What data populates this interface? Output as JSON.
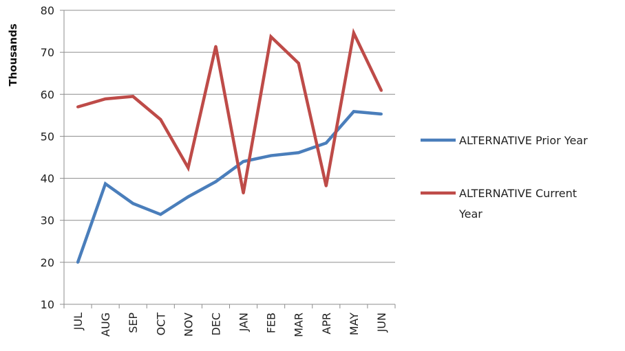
{
  "chart_data": {
    "type": "line",
    "categories": [
      "JUL",
      "AUG",
      "SEP",
      "OCT",
      "NOV",
      "DEC",
      "JAN",
      "FEB",
      "MAR",
      "APR",
      "MAY",
      "JUN"
    ],
    "series": [
      {
        "name": "ALTERNATIVE  Prior Year",
        "color": "#4a7ebb",
        "values": [
          20,
          38.7,
          34,
          31.4,
          35.6,
          39.2,
          44,
          45.4,
          46.1,
          48.4,
          55.9,
          55.3
        ]
      },
      {
        "name": "ALTERNATIVE  Current Year",
        "color": "#be4b48",
        "values": [
          57,
          58.9,
          59.5,
          54,
          42.5,
          71.4,
          36.5,
          73.7,
          67.4,
          38.2,
          74.6,
          60.9
        ]
      }
    ],
    "ylabel": "Thousands",
    "xlabel": "",
    "title": "",
    "ylim": [
      10,
      80
    ],
    "yticks": [
      10,
      20,
      30,
      40,
      50,
      60,
      70,
      80
    ],
    "grid": true,
    "legend_position": "right"
  }
}
